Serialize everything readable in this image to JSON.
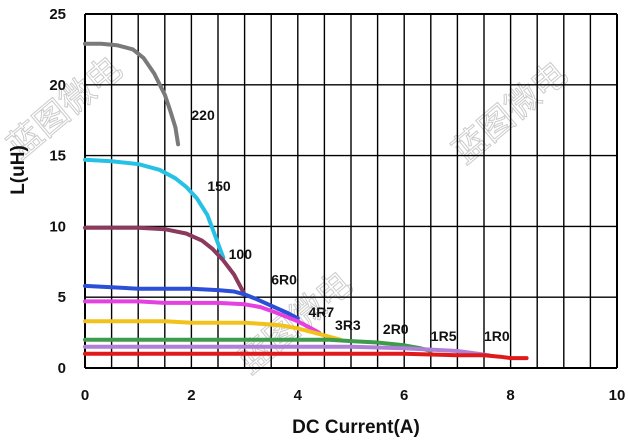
{
  "chart_data": {
    "type": "line",
    "xlabel": "DC Current(A)",
    "ylabel": "L(uH)",
    "xlim": [
      0,
      10
    ],
    "ylim": [
      0,
      25
    ],
    "x_ticks": [
      "0",
      "2",
      "4",
      "6",
      "8",
      "10"
    ],
    "y_ticks": [
      "0",
      "5",
      "10",
      "15",
      "20",
      "25"
    ],
    "grid": true,
    "series": [
      {
        "name": "220",
        "color": "#7a7a7a",
        "x": [
          0,
          0.3,
          0.6,
          0.9,
          1.1,
          1.3,
          1.5,
          1.6,
          1.7,
          1.75
        ],
        "y": [
          22.9,
          22.9,
          22.8,
          22.5,
          21.9,
          20.8,
          19.3,
          18.2,
          17.0,
          15.8
        ]
      },
      {
        "name": "150",
        "color": "#27c1e6",
        "x": [
          0,
          0.5,
          1.0,
          1.4,
          1.7,
          1.9,
          2.1,
          2.3,
          2.4,
          2.5,
          2.6
        ],
        "y": [
          14.7,
          14.6,
          14.4,
          14.0,
          13.4,
          12.8,
          12.0,
          10.8,
          9.8,
          8.8,
          7.8
        ]
      },
      {
        "name": "100",
        "color": "#8b3a5e",
        "x": [
          0,
          0.5,
          1.0,
          1.5,
          1.9,
          2.2,
          2.4,
          2.6,
          2.8,
          3.0
        ],
        "y": [
          9.9,
          9.9,
          9.9,
          9.8,
          9.5,
          9.0,
          8.4,
          7.6,
          6.6,
          5.2
        ]
      },
      {
        "name": "6R0",
        "color": "#2b4fd6",
        "x": [
          0,
          0.5,
          1.0,
          1.5,
          2.0,
          2.5,
          2.8,
          3.0,
          3.2,
          3.5,
          3.8,
          4.0
        ],
        "y": [
          5.8,
          5.7,
          5.6,
          5.6,
          5.6,
          5.5,
          5.4,
          5.2,
          4.9,
          4.4,
          3.9,
          3.5
        ]
      },
      {
        "name": "4R7",
        "color": "#e540e0",
        "x": [
          0,
          0.5,
          1.0,
          1.5,
          2.0,
          2.5,
          3.0,
          3.3,
          3.6,
          4.0,
          4.2,
          4.4
        ],
        "y": [
          4.7,
          4.7,
          4.7,
          4.6,
          4.6,
          4.6,
          4.5,
          4.3,
          3.9,
          3.3,
          2.9,
          2.5
        ]
      },
      {
        "name": "3R3",
        "color": "#f3c21a",
        "x": [
          0,
          0.5,
          1.0,
          1.5,
          2.0,
          2.5,
          3.0,
          3.4,
          3.7,
          4.0,
          4.3,
          4.6,
          4.8
        ],
        "y": [
          3.3,
          3.3,
          3.3,
          3.3,
          3.2,
          3.2,
          3.2,
          3.1,
          3.0,
          2.8,
          2.5,
          2.2,
          2.0
        ]
      },
      {
        "name": "2R0",
        "color": "#3e9a4c",
        "x": [
          0,
          1.0,
          2.0,
          3.0,
          4.0,
          4.6,
          5.0,
          5.5,
          6.0,
          6.3,
          6.5
        ],
        "y": [
          2.0,
          2.0,
          2.0,
          2.0,
          2.0,
          2.0,
          1.9,
          1.8,
          1.6,
          1.4,
          1.2
        ]
      },
      {
        "name": "1R5",
        "color": "#b07fd6",
        "x": [
          0,
          1.0,
          2.0,
          3.0,
          4.0,
          5.0,
          6.0,
          6.5,
          7.0,
          7.4,
          7.6
        ],
        "y": [
          1.5,
          1.5,
          1.5,
          1.5,
          1.5,
          1.5,
          1.4,
          1.3,
          1.2,
          1.0,
          0.9
        ]
      },
      {
        "name": "1R0",
        "color": "#e01a1a",
        "x": [
          0,
          1.0,
          2.0,
          3.0,
          4.0,
          5.0,
          6.0,
          7.0,
          7.5,
          7.8,
          8.0,
          8.3
        ],
        "y": [
          1.0,
          1.0,
          1.0,
          1.0,
          1.0,
          1.0,
          1.0,
          0.9,
          0.9,
          0.8,
          0.7,
          0.7
        ]
      }
    ],
    "labels": [
      {
        "text": "220",
        "x": 2.0,
        "y": 17.5
      },
      {
        "text": "150",
        "x": 2.3,
        "y": 12.5
      },
      {
        "text": "100",
        "x": 2.7,
        "y": 7.7
      },
      {
        "text": "6R0",
        "x": 3.5,
        "y": 5.9
      },
      {
        "text": "4R7",
        "x": 4.2,
        "y": 3.6
      },
      {
        "text": "3R3",
        "x": 4.7,
        "y": 2.7
      },
      {
        "text": "2R0",
        "x": 5.6,
        "y": 2.4
      },
      {
        "text": "1R5",
        "x": 6.5,
        "y": 1.9
      },
      {
        "text": "1R0",
        "x": 7.5,
        "y": 1.9
      }
    ]
  },
  "watermark": "蓝图微电"
}
